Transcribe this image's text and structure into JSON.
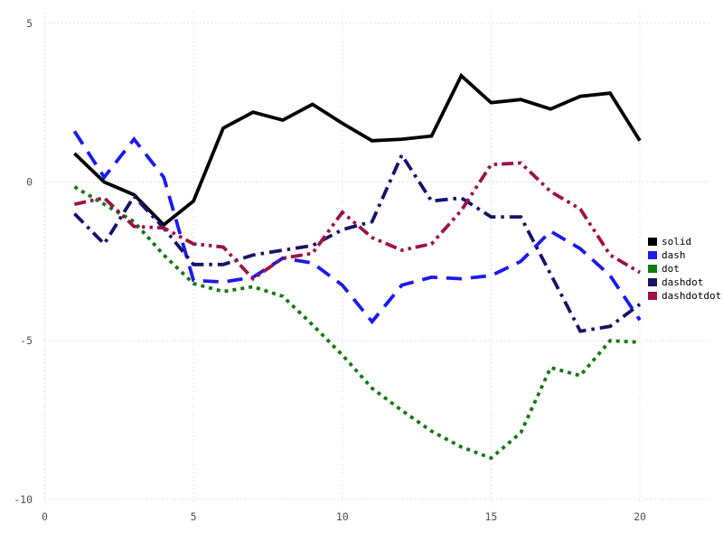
{
  "figure": {
    "background_color": "#ffffff",
    "grid_color": "#d8d8de",
    "tick_label_color": "#4e4e52",
    "legend_text_color": "#000000"
  },
  "chart_data": {
    "type": "line",
    "title": "",
    "xlabel": "",
    "ylabel": "",
    "grid": true,
    "grid_style": "dotted",
    "legend_position": "right-outside",
    "x_ticks": [
      0,
      5,
      10,
      15,
      20
    ],
    "y_ticks": [
      5,
      0,
      -5,
      -10
    ],
    "xlim": [
      0,
      22.4
    ],
    "ylim": [
      -10.2,
      5.35
    ],
    "x": [
      1,
      2,
      3,
      4,
      5,
      6,
      7,
      8,
      9,
      10,
      11,
      12,
      13,
      14,
      15,
      16,
      17,
      18,
      19,
      20
    ],
    "series": [
      {
        "name": "solid",
        "color": "#000000",
        "dash_style": "solid",
        "values": [
          0.9,
          0.0,
          -0.4,
          -1.35,
          -0.6,
          1.7,
          2.2,
          1.95,
          2.45,
          1.85,
          1.3,
          1.35,
          1.45,
          3.35,
          2.5,
          2.6,
          2.3,
          2.7,
          2.8,
          1.3
        ]
      },
      {
        "name": "dash",
        "color": "#1b1bea",
        "dash_style": "dash",
        "values": [
          1.6,
          0.15,
          1.35,
          0.15,
          -3.1,
          -3.15,
          -3.0,
          -2.4,
          -2.55,
          -3.25,
          -4.4,
          -3.25,
          -3.0,
          -3.05,
          -2.95,
          -2.5,
          -1.55,
          -2.1,
          -2.95,
          -4.35
        ]
      },
      {
        "name": "dot",
        "color": "#137813",
        "dash_style": "dot",
        "values": [
          -0.15,
          -0.7,
          -1.25,
          -2.3,
          -3.2,
          -3.45,
          -3.3,
          -3.6,
          -4.5,
          -5.45,
          -6.5,
          -7.2,
          -7.85,
          -8.35,
          -8.7,
          -7.9,
          -5.85,
          -6.1,
          -5.0,
          -5.05
        ]
      },
      {
        "name": "dashdot",
        "color": "#14146b",
        "dash_style": "dashdot",
        "values": [
          -1.0,
          -1.95,
          -0.45,
          -1.45,
          -2.6,
          -2.6,
          -2.3,
          -2.15,
          -2.0,
          -1.5,
          -1.25,
          0.85,
          -0.6,
          -0.5,
          -1.1,
          -1.1,
          -2.9,
          -4.7,
          -4.55,
          -3.85
        ]
      },
      {
        "name": "dashdotdot",
        "color": "#9b1248",
        "dash_style": "dashdotdot",
        "values": [
          -0.7,
          -0.5,
          -1.4,
          -1.45,
          -1.95,
          -2.05,
          -3.05,
          -2.4,
          -2.25,
          -0.95,
          -1.75,
          -2.15,
          -1.95,
          -0.9,
          0.55,
          0.6,
          -0.3,
          -0.85,
          -2.3,
          -2.85
        ]
      }
    ]
  }
}
